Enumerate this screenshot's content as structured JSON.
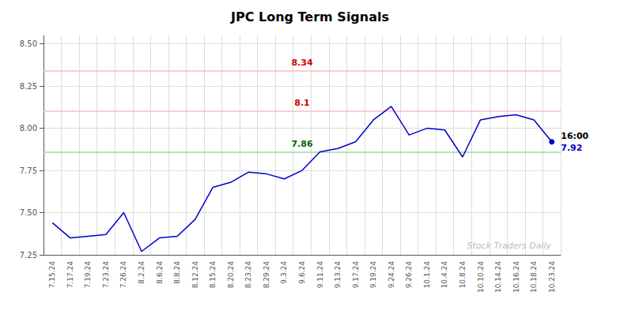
{
  "chart_data": {
    "type": "line",
    "title": "JPC Long Term Signals",
    "categories": [
      "7.15.24",
      "7.17.24",
      "7.19.24",
      "7.23.24",
      "7.26.24",
      "8.2.24",
      "8.6.24",
      "8.8.24",
      "8.12.24",
      "8.15.24",
      "8.20.24",
      "8.23.24",
      "8.29.24",
      "9.3.24",
      "9.6.24",
      "9.11.24",
      "9.13.24",
      "9.17.24",
      "9.19.24",
      "9.24.24",
      "9.26.24",
      "10.1.24",
      "10.4.24",
      "10.8.24",
      "10.10.24",
      "10.14.24",
      "10.16.24",
      "10.18.24",
      "10.23.24"
    ],
    "values": [
      7.44,
      7.35,
      7.36,
      7.37,
      7.5,
      7.27,
      7.35,
      7.36,
      7.46,
      7.65,
      7.68,
      7.74,
      7.73,
      7.7,
      7.75,
      7.86,
      7.88,
      7.92,
      8.05,
      8.13,
      7.96,
      8.0,
      7.99,
      7.83,
      8.05,
      8.07,
      8.08,
      8.05,
      7.92
    ],
    "color": "#0000cc",
    "hlines": [
      {
        "value": 8.34,
        "label": "8.34",
        "color": "#ffbbbb",
        "label_color": "#cc0000"
      },
      {
        "value": 8.1,
        "label": "8.1",
        "color": "#ffbbbb",
        "label_color": "#cc0000"
      },
      {
        "value": 7.86,
        "label": "7.86",
        "color": "#99dd99",
        "label_color": "#006600"
      }
    ],
    "end_labels": [
      "16:00",
      "7.92"
    ],
    "end_label_color": "#0000cc",
    "watermark": "Stock Traders Daily",
    "watermark_color": "#bbbbbb",
    "ylim": [
      7.25,
      8.55
    ],
    "yticks": [
      7.25,
      {
        "value": 7.5,
        "label": "7.50"
      },
      7.75,
      {
        "value": 8.0,
        "label": "8.00"
      },
      8.25,
      {
        "value": 8.5,
        "label": "8.50"
      }
    ],
    "grid": true,
    "grid_color": "#dddddd"
  }
}
